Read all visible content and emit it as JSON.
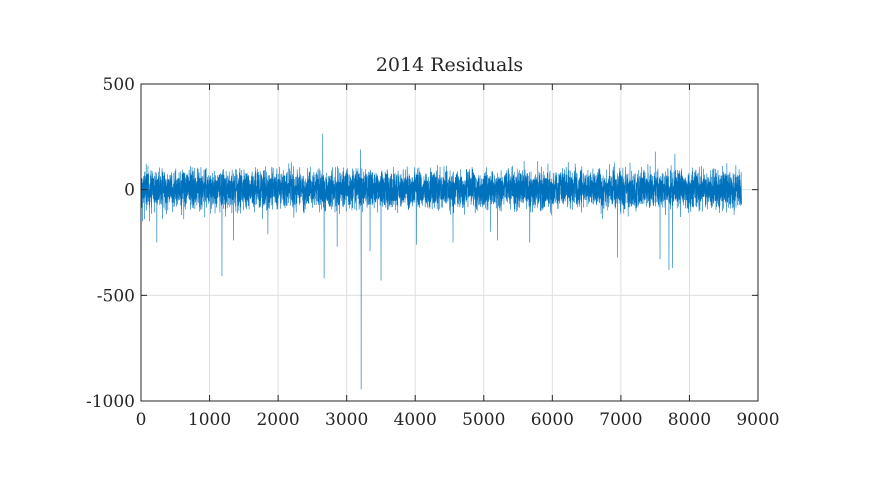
{
  "chart_data": {
    "type": "line",
    "title": "2014 Residuals",
    "xlabel": "",
    "ylabel": "",
    "xlim": [
      0,
      9000
    ],
    "ylim": [
      -1000,
      500
    ],
    "xticks": [
      0,
      1000,
      2000,
      3000,
      4000,
      5000,
      6000,
      7000,
      8000,
      9000
    ],
    "yticks": [
      500,
      0,
      -500,
      -1000
    ],
    "xtick_labels": [
      "0",
      "1000",
      "2000",
      "3000",
      "4000",
      "5000",
      "6000",
      "7000",
      "8000",
      "9000"
    ],
    "ytick_labels": [
      "500",
      "0",
      "-500",
      "-1000"
    ],
    "grid": true,
    "series_color": "#0072BD",
    "n_points": 8760,
    "noise_band": [
      -100,
      130
    ],
    "spikes": [
      {
        "x": 20,
        "y": -150
      },
      {
        "x": 50,
        "y": -140
      },
      {
        "x": 120,
        "y": -150
      },
      {
        "x": 230,
        "y": -250
      },
      {
        "x": 1180,
        "y": -410
      },
      {
        "x": 1350,
        "y": -240
      },
      {
        "x": 1850,
        "y": -210
      },
      {
        "x": 2650,
        "y": 265
      },
      {
        "x": 2670,
        "y": -420
      },
      {
        "x": 2860,
        "y": -270
      },
      {
        "x": 3200,
        "y": 190
      },
      {
        "x": 3210,
        "y": -945
      },
      {
        "x": 3340,
        "y": -290
      },
      {
        "x": 3500,
        "y": -430
      },
      {
        "x": 4020,
        "y": -260
      },
      {
        "x": 4550,
        "y": -250
      },
      {
        "x": 5100,
        "y": -200
      },
      {
        "x": 5200,
        "y": -240
      },
      {
        "x": 5670,
        "y": -250
      },
      {
        "x": 6950,
        "y": -320
      },
      {
        "x": 7500,
        "y": 180
      },
      {
        "x": 7570,
        "y": -330
      },
      {
        "x": 7700,
        "y": -380
      },
      {
        "x": 7750,
        "y": -370
      },
      {
        "x": 8650,
        "y": -120
      }
    ]
  }
}
